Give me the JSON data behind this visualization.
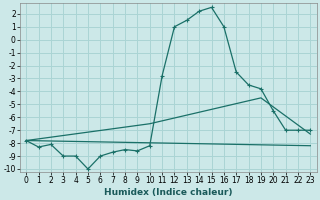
{
  "xlabel": "Humidex (Indice chaleur)",
  "ylabel": "",
  "background_color": "#cce8e8",
  "grid_color": "#aad4d4",
  "line_color": "#1a7068",
  "xlim": [
    -0.5,
    23.5
  ],
  "ylim": [
    -10.2,
    2.8
  ],
  "xticks": [
    0,
    1,
    2,
    3,
    4,
    5,
    6,
    7,
    8,
    9,
    10,
    11,
    12,
    13,
    14,
    15,
    16,
    17,
    18,
    19,
    20,
    21,
    22,
    23
  ],
  "yticks": [
    -10,
    -9,
    -8,
    -7,
    -6,
    -5,
    -4,
    -3,
    -2,
    -1,
    0,
    1,
    2
  ],
  "line1_x": [
    0,
    1,
    2,
    3,
    4,
    5,
    6,
    7,
    8,
    9,
    10,
    11,
    12,
    13,
    14,
    15,
    16,
    17,
    18,
    19,
    20,
    21,
    22,
    23
  ],
  "line1_y": [
    -7.8,
    -8.3,
    -8.1,
    -9.0,
    -9.0,
    -10.0,
    -9.0,
    -8.7,
    -8.5,
    -8.6,
    -8.2,
    -2.8,
    1.0,
    1.5,
    2.2,
    2.5,
    1.0,
    -2.5,
    -3.5,
    -3.8,
    -5.5,
    -7.0,
    -7.0,
    -7.0
  ],
  "line2_x": [
    0,
    10,
    19,
    23
  ],
  "line2_y": [
    -7.8,
    -6.5,
    -4.5,
    -7.3
  ],
  "line3_x": [
    0,
    23
  ],
  "line3_y": [
    -7.8,
    -8.2
  ],
  "marker": "+"
}
